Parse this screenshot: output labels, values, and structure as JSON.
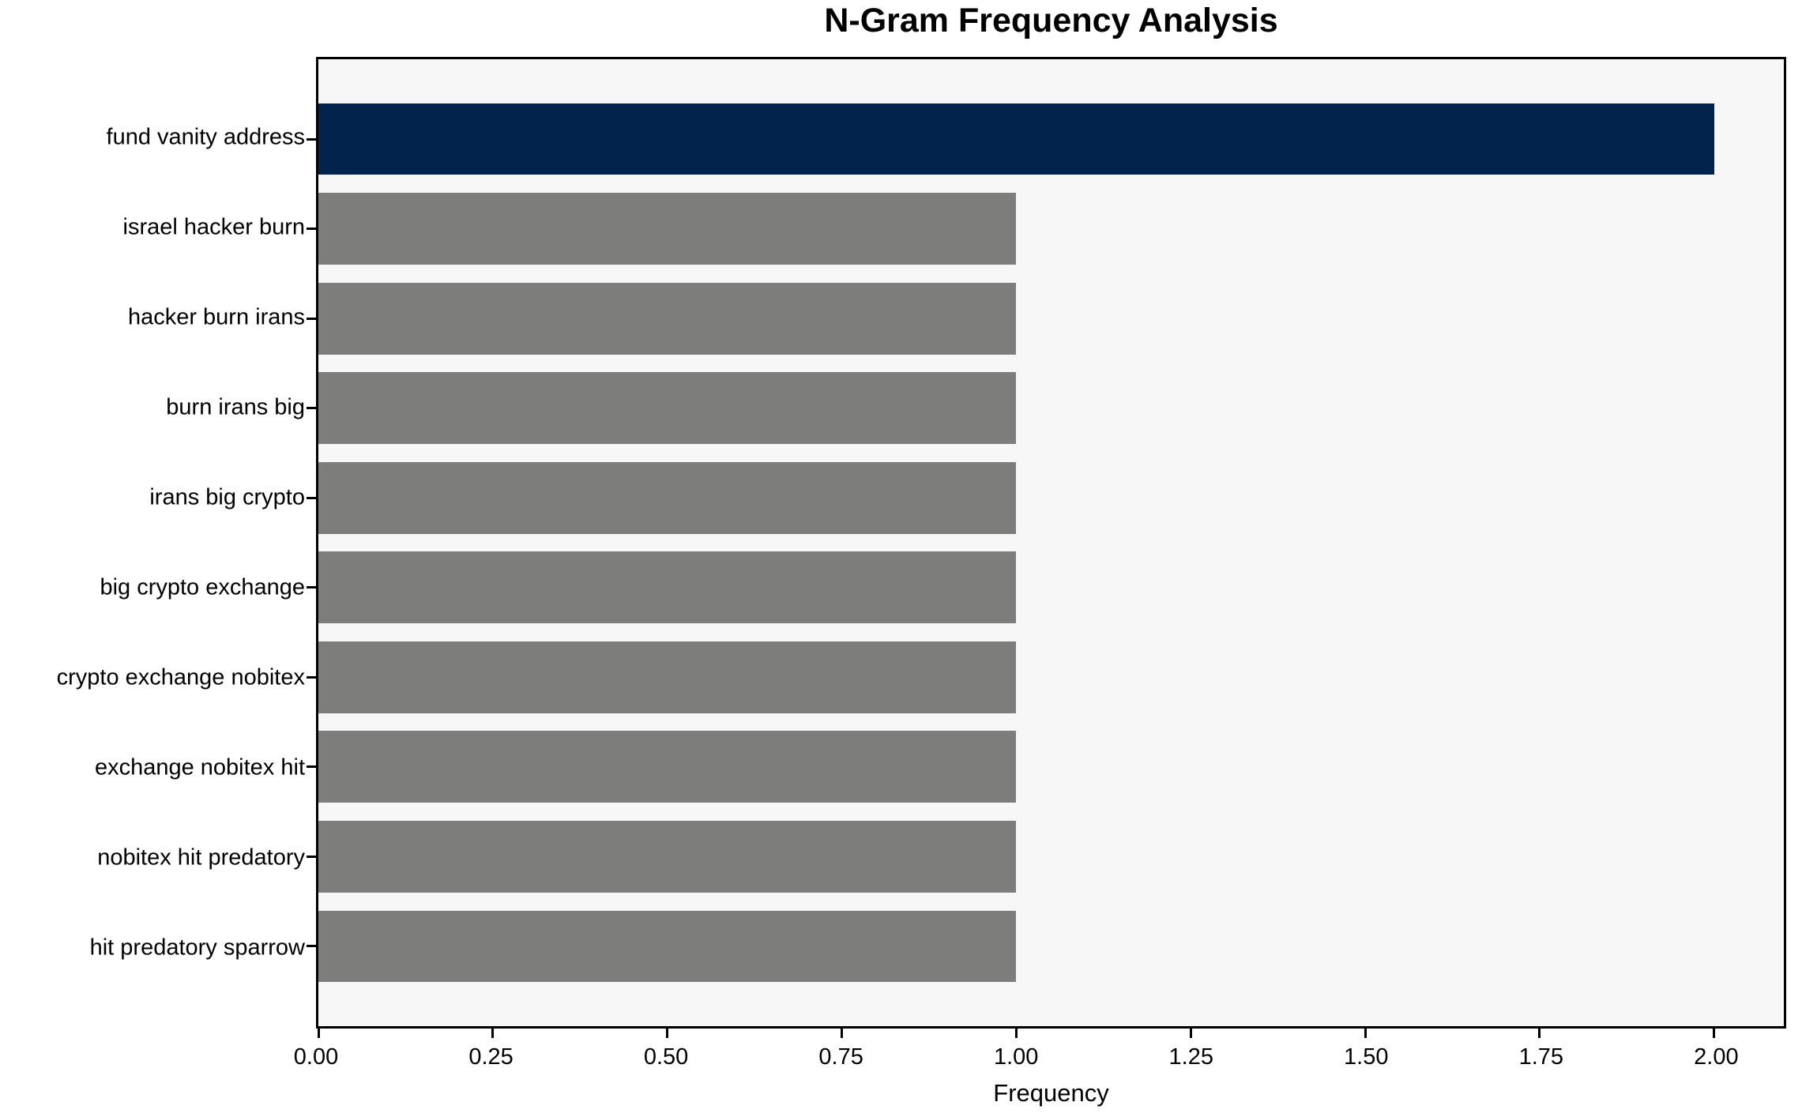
{
  "chart_data": {
    "type": "bar",
    "orientation": "horizontal",
    "title": "N-Gram Frequency Analysis",
    "xlabel": "Frequency",
    "ylabel": "",
    "categories": [
      "fund vanity address",
      "israel hacker burn",
      "hacker burn irans",
      "burn irans big",
      "irans big crypto",
      "big crypto exchange",
      "crypto exchange nobitex",
      "exchange nobitex hit",
      "nobitex hit predatory",
      "hit predatory sparrow"
    ],
    "values": [
      2,
      1,
      1,
      1,
      1,
      1,
      1,
      1,
      1,
      1
    ],
    "bar_colors": [
      "#02234c",
      "#7d7d7b",
      "#7d7d7b",
      "#7d7d7b",
      "#7d7d7b",
      "#7d7d7b",
      "#7d7d7b",
      "#7d7d7b",
      "#7d7d7b",
      "#7d7d7b"
    ],
    "xlim": [
      0,
      2.1
    ],
    "x_ticks": [
      {
        "value": 0.0,
        "label": "0.00"
      },
      {
        "value": 0.25,
        "label": "0.25"
      },
      {
        "value": 0.5,
        "label": "0.50"
      },
      {
        "value": 0.75,
        "label": "0.75"
      },
      {
        "value": 1.0,
        "label": "1.00"
      },
      {
        "value": 1.25,
        "label": "1.25"
      },
      {
        "value": 1.5,
        "label": "1.50"
      },
      {
        "value": 1.75,
        "label": "1.75"
      },
      {
        "value": 2.0,
        "label": "2.00"
      }
    ],
    "grid": false,
    "legend": null,
    "plot_background": "#f7f7f7",
    "figure_background": "#ffffff",
    "spine_color": "#000000"
  }
}
